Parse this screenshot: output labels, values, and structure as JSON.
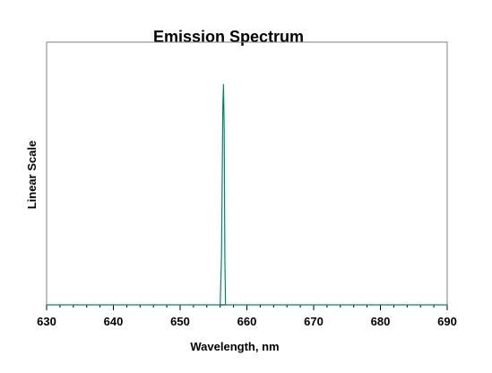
{
  "chart_data": {
    "type": "line",
    "title": "Emission Spectrum",
    "x_label": "Wavelength, nm",
    "y_label": "Linear Scale",
    "series": [
      {
        "color": "#00876a",
        "x": [
          630,
          656.0,
          656.2,
          656.4,
          656.5,
          656.6,
          656.7,
          656.8,
          690
        ],
        "values": [
          0,
          0,
          0.19,
          0.76,
          0.84,
          0.67,
          0.18,
          0,
          0
        ]
      }
    ],
    "xlim": [
      630,
      690
    ],
    "xticks": [
      630,
      640,
      650,
      660,
      670,
      680,
      690
    ],
    "xminorticks": [
      632,
      634,
      636,
      638,
      642,
      644,
      646,
      648,
      652,
      654,
      656,
      658,
      662,
      664,
      666,
      668,
      672,
      674,
      676,
      678,
      682,
      684,
      686,
      688
    ],
    "ylim": [
      0,
      1
    ]
  }
}
